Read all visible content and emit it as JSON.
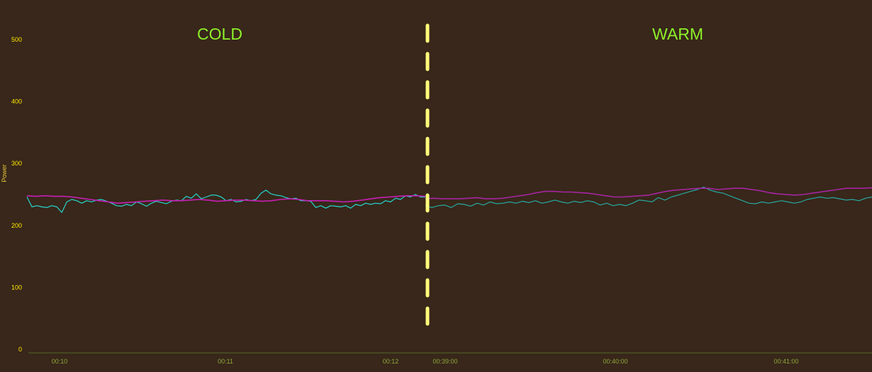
{
  "chart_data": {
    "type": "line",
    "ylabel": "Power",
    "ylim": [
      0,
      500
    ],
    "yticks": [
      0,
      100,
      200,
      300,
      400,
      500
    ],
    "colors": {
      "background": "#38271a",
      "divider_line": "#fffb7a",
      "panel_label": "#8ef02a",
      "ytick": "#ffe600",
      "xtick": "#8fa83a",
      "axis_title": "#e6c43a",
      "frame": "#3f3f2a"
    },
    "panels": [
      {
        "label": "COLD",
        "xticks": [
          "00:10",
          "00:11",
          "00:12"
        ],
        "series": [
          {
            "color": "#25d6cf",
            "values": [
              246,
              230,
              232,
              230,
              229,
              232,
              230,
              221,
              238,
              242,
              240,
              236,
              240,
              238,
              241,
              242,
              239,
              236,
              232,
              231,
              234,
              232,
              238,
              235,
              231,
              236,
              239,
              237,
              235,
              239,
              241,
              240,
              247,
              244,
              251,
              243,
              246,
              249,
              249,
              246,
              240,
              242,
              238,
              239,
              242,
              240,
              242,
              252,
              257,
              251,
              249,
              248,
              245,
              243,
              244,
              240,
              240,
              239,
              229,
              232,
              228,
              232,
              231,
              230,
              232,
              228,
              234,
              232,
              236,
              234,
              236,
              235,
              240,
              238,
              244,
              242,
              248,
              246,
              250,
              246,
              246
            ]
          },
          {
            "color": "#c81fb6",
            "values": [
              248,
              247,
              248,
              247,
              247,
              246,
              244,
              242,
              240,
              238,
              236,
              237,
              238,
              239,
              240,
              241,
              240,
              240,
              241,
              242,
              241,
              239,
              240,
              241,
              241,
              240,
              239,
              240,
              242,
              243,
              242,
              240,
              240,
              240,
              239,
              238,
              239,
              241,
              243,
              245,
              246,
              247,
              248,
              248,
              247
            ]
          }
        ]
      },
      {
        "label": "WARM",
        "xticks": [
          "00:39:00",
          "00:40:00",
          "00:41:00"
        ],
        "series": [
          {
            "color": "#26a8a0",
            "values": [
              232,
              229,
              232,
              233,
              229,
              235,
              234,
              231,
              236,
              233,
              238,
              235,
              236,
              238,
              236,
              239,
              237,
              240,
              236,
              238,
              241,
              238,
              236,
              239,
              237,
              240,
              238,
              233,
              236,
              232,
              234,
              232,
              236,
              241,
              240,
              238,
              245,
              241,
              246,
              249,
              252,
              255,
              258,
              262,
              257,
              254,
              252,
              248,
              244,
              240,
              236,
              235,
              238,
              236,
              238,
              240,
              238,
              236,
              238,
              242,
              244,
              246,
              244,
              245,
              243,
              241,
              242,
              240,
              244,
              246
            ]
          },
          {
            "color": "#a725a3",
            "values": [
              243,
              244,
              243,
              243,
              243,
              244,
              245,
              243,
              243,
              244,
              246,
              248,
              250,
              253,
              255,
              255,
              254,
              254,
              253,
              252,
              250,
              248,
              246,
              246,
              247,
              248,
              249,
              252,
              255,
              257,
              258,
              259,
              260,
              260,
              258,
              259,
              260,
              260,
              258,
              256,
              253,
              251,
              250,
              249,
              250,
              252,
              254,
              256,
              258,
              260,
              260,
              260,
              261
            ]
          }
        ]
      }
    ]
  }
}
